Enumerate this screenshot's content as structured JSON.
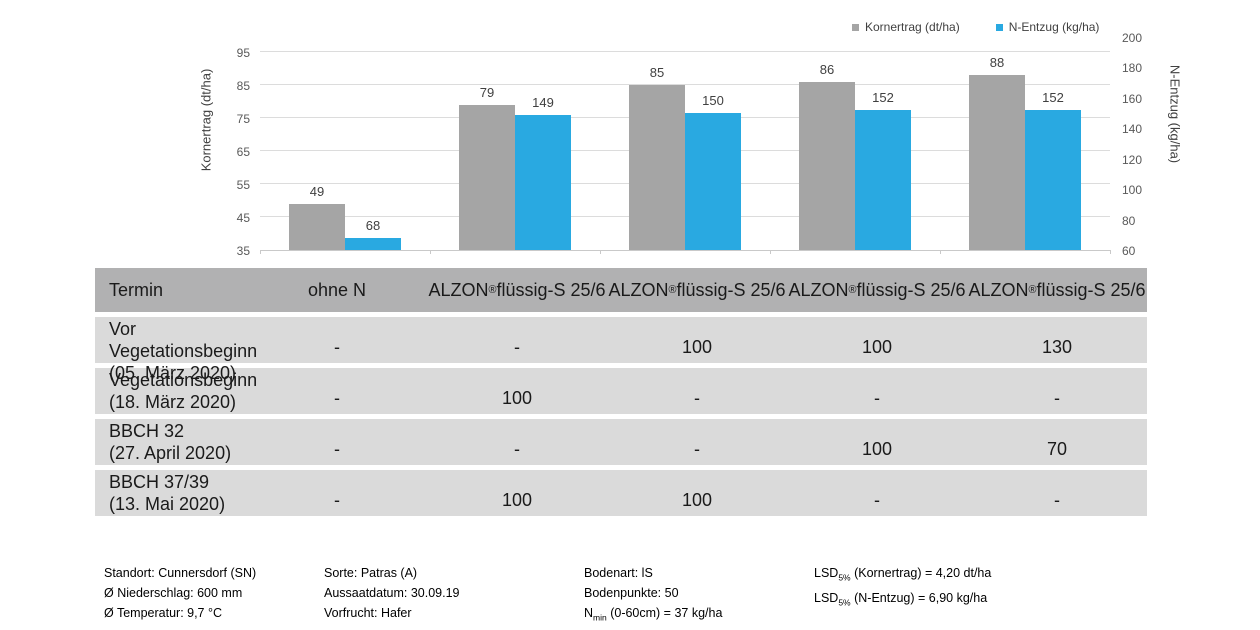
{
  "chart_data": {
    "type": "bar",
    "title": "",
    "categories": [
      "ohne N",
      "ALZON® flüssig-S 25/6",
      "ALZON® flüssig-S 25/6",
      "ALZON® flüssig-S 25/6",
      "ALZON® flüssig-S 25/6"
    ],
    "series": [
      {
        "name": "Kornertrag (dt/ha)",
        "axis": "left",
        "color": "#a5a5a5",
        "values": [
          49,
          79,
          85,
          86,
          88
        ]
      },
      {
        "name": "N-Entzug (kg/ha)",
        "axis": "right",
        "color": "#29a9e1",
        "values": [
          68,
          149,
          150,
          152,
          152
        ]
      }
    ],
    "left_axis": {
      "title": "Kornertrag (dt/ha)",
      "min": 35,
      "max": 99.5,
      "ticks": [
        35,
        45,
        55,
        65,
        75,
        85,
        95
      ]
    },
    "right_axis": {
      "title": "N-Entzug (kg/ha)",
      "min": 60,
      "max": 200,
      "ticks": [
        60,
        80,
        100,
        120,
        140,
        160,
        180,
        200
      ]
    },
    "grid": true,
    "legend_position": "top-right"
  },
  "table": {
    "header": {
      "termin": "Termin",
      "columns": [
        "ohne N",
        "ALZON® flüssig-S 25/6",
        "ALZON® flüssig-S 25/6",
        "ALZON® flüssig-S 25/6",
        "ALZON® flüssig-S 25/6"
      ]
    },
    "rows": [
      {
        "label": "Vor Vegetationsbeginn",
        "date": "(05. März 2020)",
        "values": [
          "-",
          "-",
          "100",
          "100",
          "130"
        ]
      },
      {
        "label": "Vegetationsbeginn",
        "date": "(18. März 2020)",
        "values": [
          "-",
          "100",
          "-",
          "-",
          "-"
        ]
      },
      {
        "label": "BBCH 32",
        "date": "(27. April 2020)",
        "values": [
          "-",
          "-",
          "-",
          "100",
          "70"
        ]
      },
      {
        "label": "BBCH 37/39",
        "date": "(13. Mai 2020)",
        "values": [
          "-",
          "100",
          "100",
          "-",
          "-"
        ]
      }
    ]
  },
  "footer": {
    "columns": [
      {
        "lines": [
          "Standort: Cunnersdorf (SN)",
          "Ø Niederschlag: 600 mm",
          "Ø Temperatur: 9,7 °C"
        ]
      },
      {
        "lines": [
          "Sorte: Patras (A)",
          "Aussaatdatum: 30.09.19",
          "Vorfrucht: Hafer"
        ]
      },
      {
        "lines": [
          "Bodenart: lS",
          "Bodenpunkte: 50",
          [
            "N",
            {
              "sub": "min"
            },
            " (0-60cm) = 37 kg/ha"
          ]
        ]
      },
      {
        "lines": [
          [
            "LSD",
            {
              "sub": "5%"
            },
            " (Kornertrag) = 4,20 dt/ha"
          ],
          [
            "LSD",
            {
              "sub": "5%"
            },
            " (N-Entzug) = 6,90 kg/ha"
          ]
        ]
      }
    ]
  }
}
